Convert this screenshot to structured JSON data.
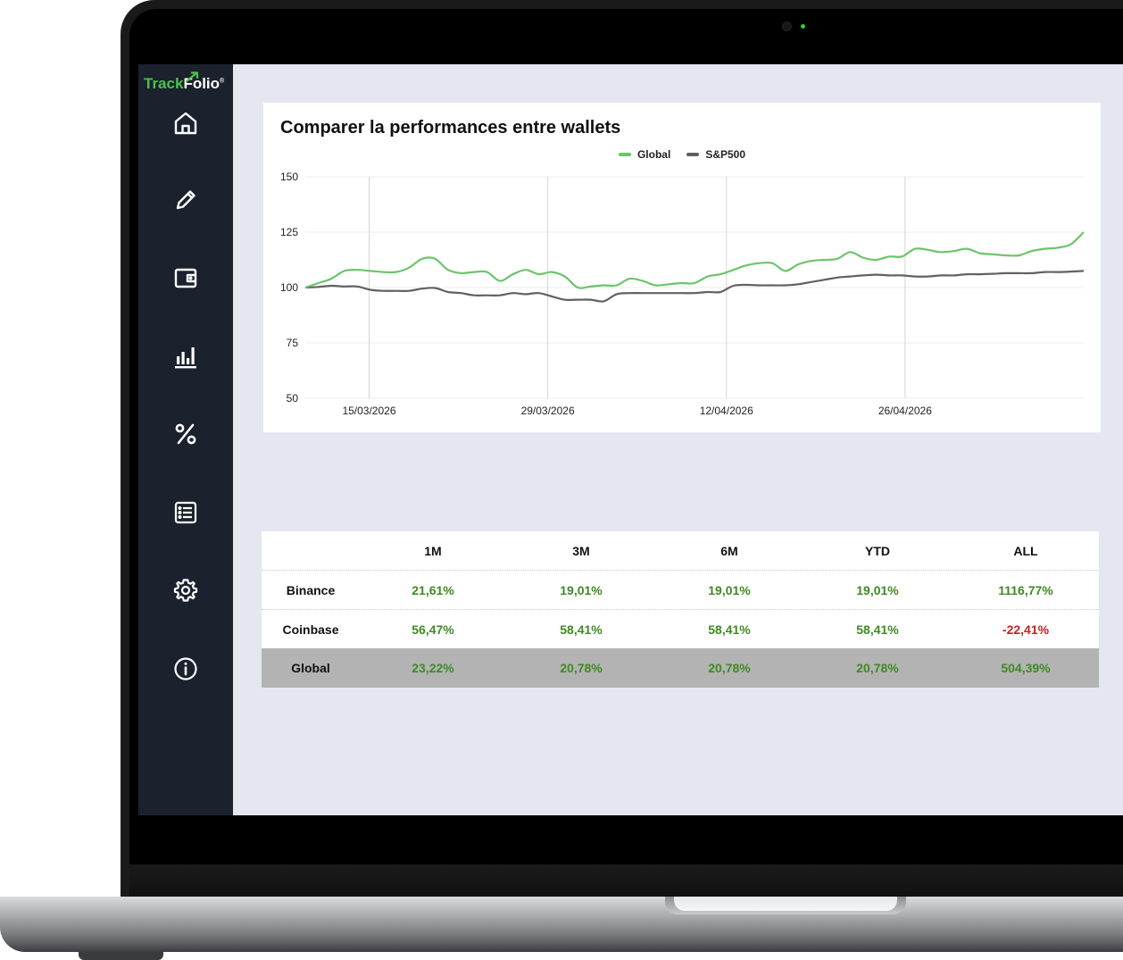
{
  "app": {
    "logo": {
      "part1": "Track",
      "part2": "Folio",
      "reg": "®"
    }
  },
  "sidebar": {
    "items": [
      {
        "name": "home",
        "icon": "home-icon"
      },
      {
        "name": "edit",
        "icon": "pencil-icon"
      },
      {
        "name": "wallet",
        "icon": "wallet-icon"
      },
      {
        "name": "stats",
        "icon": "bar-chart-icon"
      },
      {
        "name": "percent",
        "icon": "percent-icon"
      },
      {
        "name": "list",
        "icon": "list-icon"
      },
      {
        "name": "settings",
        "icon": "gear-icon"
      },
      {
        "name": "info",
        "icon": "info-icon"
      }
    ]
  },
  "colors": {
    "sidebar_bg": "#1b212d",
    "screen_bg": "#e4e7ef",
    "accent_green": "#4cc24a",
    "global_line": "#6cc46a",
    "sp500_line": "#616161",
    "positive": "#3f8a24",
    "negative": "#c42020"
  },
  "chart_data": {
    "type": "line",
    "title": "Comparer la performances entre wallets",
    "xlabel": "",
    "ylabel": "",
    "ylim": [
      50,
      150
    ],
    "yticks": [
      50,
      75,
      100,
      125,
      150
    ],
    "xticks": [
      "15/03/2026",
      "29/03/2026",
      "12/04/2026",
      "26/04/2026"
    ],
    "grid": "vertical",
    "legend_position": "top-center",
    "x_start": "10/03/2026",
    "x_end": "10/05/2026",
    "series": [
      {
        "name": "Global",
        "color": "#6cc46a",
        "values": [
          100,
          102,
          104,
          107.5,
          108,
          107.5,
          107,
          107,
          109,
          113,
          113,
          108,
          106.5,
          107,
          107,
          103,
          106,
          108,
          106,
          107,
          105,
          100,
          100.5,
          101,
          101,
          104,
          103,
          101,
          101.5,
          102,
          102,
          105,
          106,
          108,
          110,
          111,
          111,
          107.5,
          110.5,
          112,
          112.5,
          113,
          116,
          113.5,
          112.5,
          114,
          114,
          117.5,
          117,
          116,
          116.5,
          117.5,
          115.5,
          115,
          114.5,
          114.5,
          116.5,
          117.5,
          118,
          119.5,
          125
        ]
      },
      {
        "name": "S&P500",
        "color": "#616161",
        "values": [
          100,
          100.3,
          100.8,
          100.5,
          100.5,
          99,
          98.5,
          98.5,
          98.5,
          99.5,
          99.8,
          98,
          97.5,
          96.5,
          96.5,
          96.5,
          97.5,
          97,
          97.5,
          96,
          94.5,
          94.5,
          94.5,
          93.8,
          97,
          97.5,
          97.5,
          97.5,
          97.5,
          97.5,
          97.5,
          98,
          98,
          100.8,
          101.2,
          101,
          101,
          101,
          101.5,
          102.5,
          103.5,
          104.5,
          105,
          105.5,
          105.8,
          105.5,
          105.5,
          105,
          105,
          105.5,
          105.5,
          106,
          106,
          106.2,
          106.5,
          106.5,
          106.5,
          107,
          107,
          107.2,
          107.5
        ]
      }
    ]
  },
  "table": {
    "headers": [
      "",
      "1M",
      "3M",
      "6M",
      "YTD",
      "ALL"
    ],
    "rows": [
      {
        "label": "Binance",
        "values": [
          "21,61%",
          "19,01%",
          "19,01%",
          "19,01%",
          "1116,77%"
        ],
        "signs": [
          "pos",
          "pos",
          "pos",
          "pos",
          "pos"
        ]
      },
      {
        "label": "Coinbase",
        "values": [
          "56,47%",
          "58,41%",
          "58,41%",
          "58,41%",
          "-22,41%"
        ],
        "signs": [
          "pos",
          "pos",
          "pos",
          "pos",
          "neg"
        ]
      },
      {
        "label": "Global",
        "values": [
          "23,22%",
          "20,78%",
          "20,78%",
          "20,78%",
          "504,39%"
        ],
        "signs": [
          "pos",
          "pos",
          "pos",
          "pos",
          "pos"
        ]
      }
    ]
  }
}
